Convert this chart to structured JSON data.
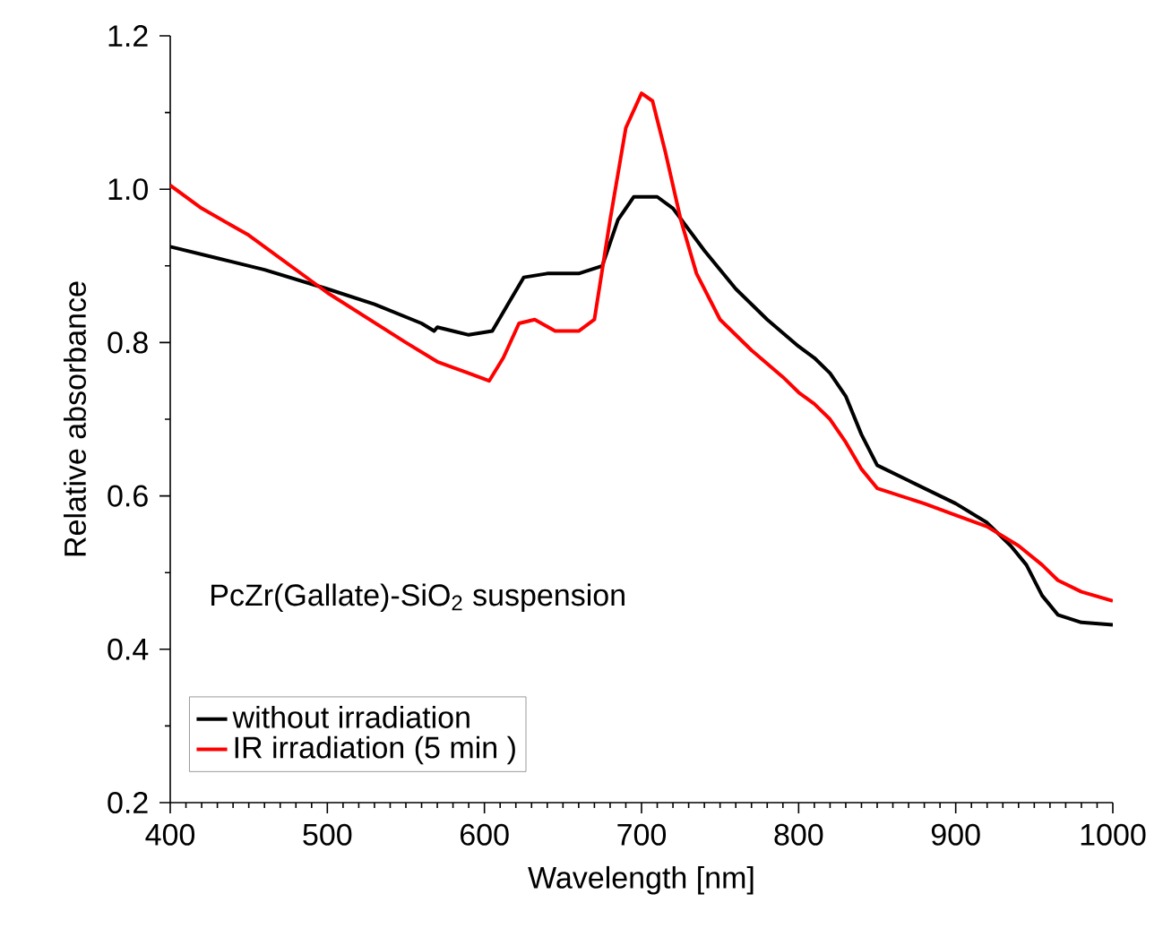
{
  "chart_data": {
    "type": "line",
    "xlabel": "Wavelength [nm]",
    "ylabel": "Relative absorbance",
    "annotations": [
      "PcZr(Gallate)-SiO$_{2}$ suspension"
    ],
    "xlim": [
      400,
      1000
    ],
    "ylim": [
      0.2,
      1.2
    ],
    "xticks": [
      400,
      500,
      600,
      700,
      800,
      900,
      1000
    ],
    "yticks": [
      {
        "value": 0.2,
        "label": "0.2"
      },
      {
        "value": 0.4,
        "label": "0.4"
      },
      {
        "value": 0.6,
        "label": "0.6"
      },
      {
        "value": 0.8,
        "label": "0.8"
      },
      {
        "value": 1.0,
        "label": "1.0"
      },
      {
        "value": 1.2,
        "label": "1.2"
      }
    ],
    "legend": "bottom left",
    "grid": false,
    "marker": "none",
    "line_style": "solid",
    "series": [
      {
        "name": "without irradiation",
        "color": "#000000",
        "x": [
          400,
          430,
          460,
          500,
          530,
          560,
          568,
          570,
          590,
          605,
          615,
          625,
          640,
          660,
          675,
          685,
          695,
          710,
          720,
          740,
          760,
          780,
          800,
          810,
          820,
          830,
          840,
          850,
          870,
          900,
          920,
          935,
          945,
          955,
          965,
          980,
          1000
        ],
        "values": [
          0.925,
          0.91,
          0.895,
          0.87,
          0.85,
          0.825,
          0.815,
          0.82,
          0.81,
          0.815,
          0.85,
          0.885,
          0.89,
          0.89,
          0.9,
          0.96,
          0.99,
          0.99,
          0.975,
          0.92,
          0.87,
          0.83,
          0.795,
          0.78,
          0.76,
          0.73,
          0.68,
          0.64,
          0.62,
          0.59,
          0.565,
          0.535,
          0.51,
          0.47,
          0.445,
          0.435,
          0.432
        ]
      },
      {
        "name": "IR irradiation (5 min )",
        "color": "#ff0000",
        "x": [
          400,
          420,
          450,
          500,
          550,
          570,
          590,
          603,
          612,
          622,
          632,
          645,
          660,
          670,
          680,
          690,
          700,
          707,
          715,
          725,
          735,
          750,
          770,
          790,
          800,
          810,
          820,
          830,
          840,
          850,
          880,
          900,
          920,
          940,
          955,
          965,
          980,
          1000
        ],
        "values": [
          1.005,
          0.975,
          0.94,
          0.865,
          0.8,
          0.775,
          0.76,
          0.75,
          0.78,
          0.825,
          0.83,
          0.815,
          0.815,
          0.83,
          0.96,
          1.08,
          1.125,
          1.115,
          1.05,
          0.96,
          0.89,
          0.83,
          0.79,
          0.755,
          0.735,
          0.72,
          0.7,
          0.67,
          0.635,
          0.61,
          0.59,
          0.575,
          0.56,
          0.535,
          0.51,
          0.49,
          0.475,
          0.463
        ]
      }
    ]
  }
}
